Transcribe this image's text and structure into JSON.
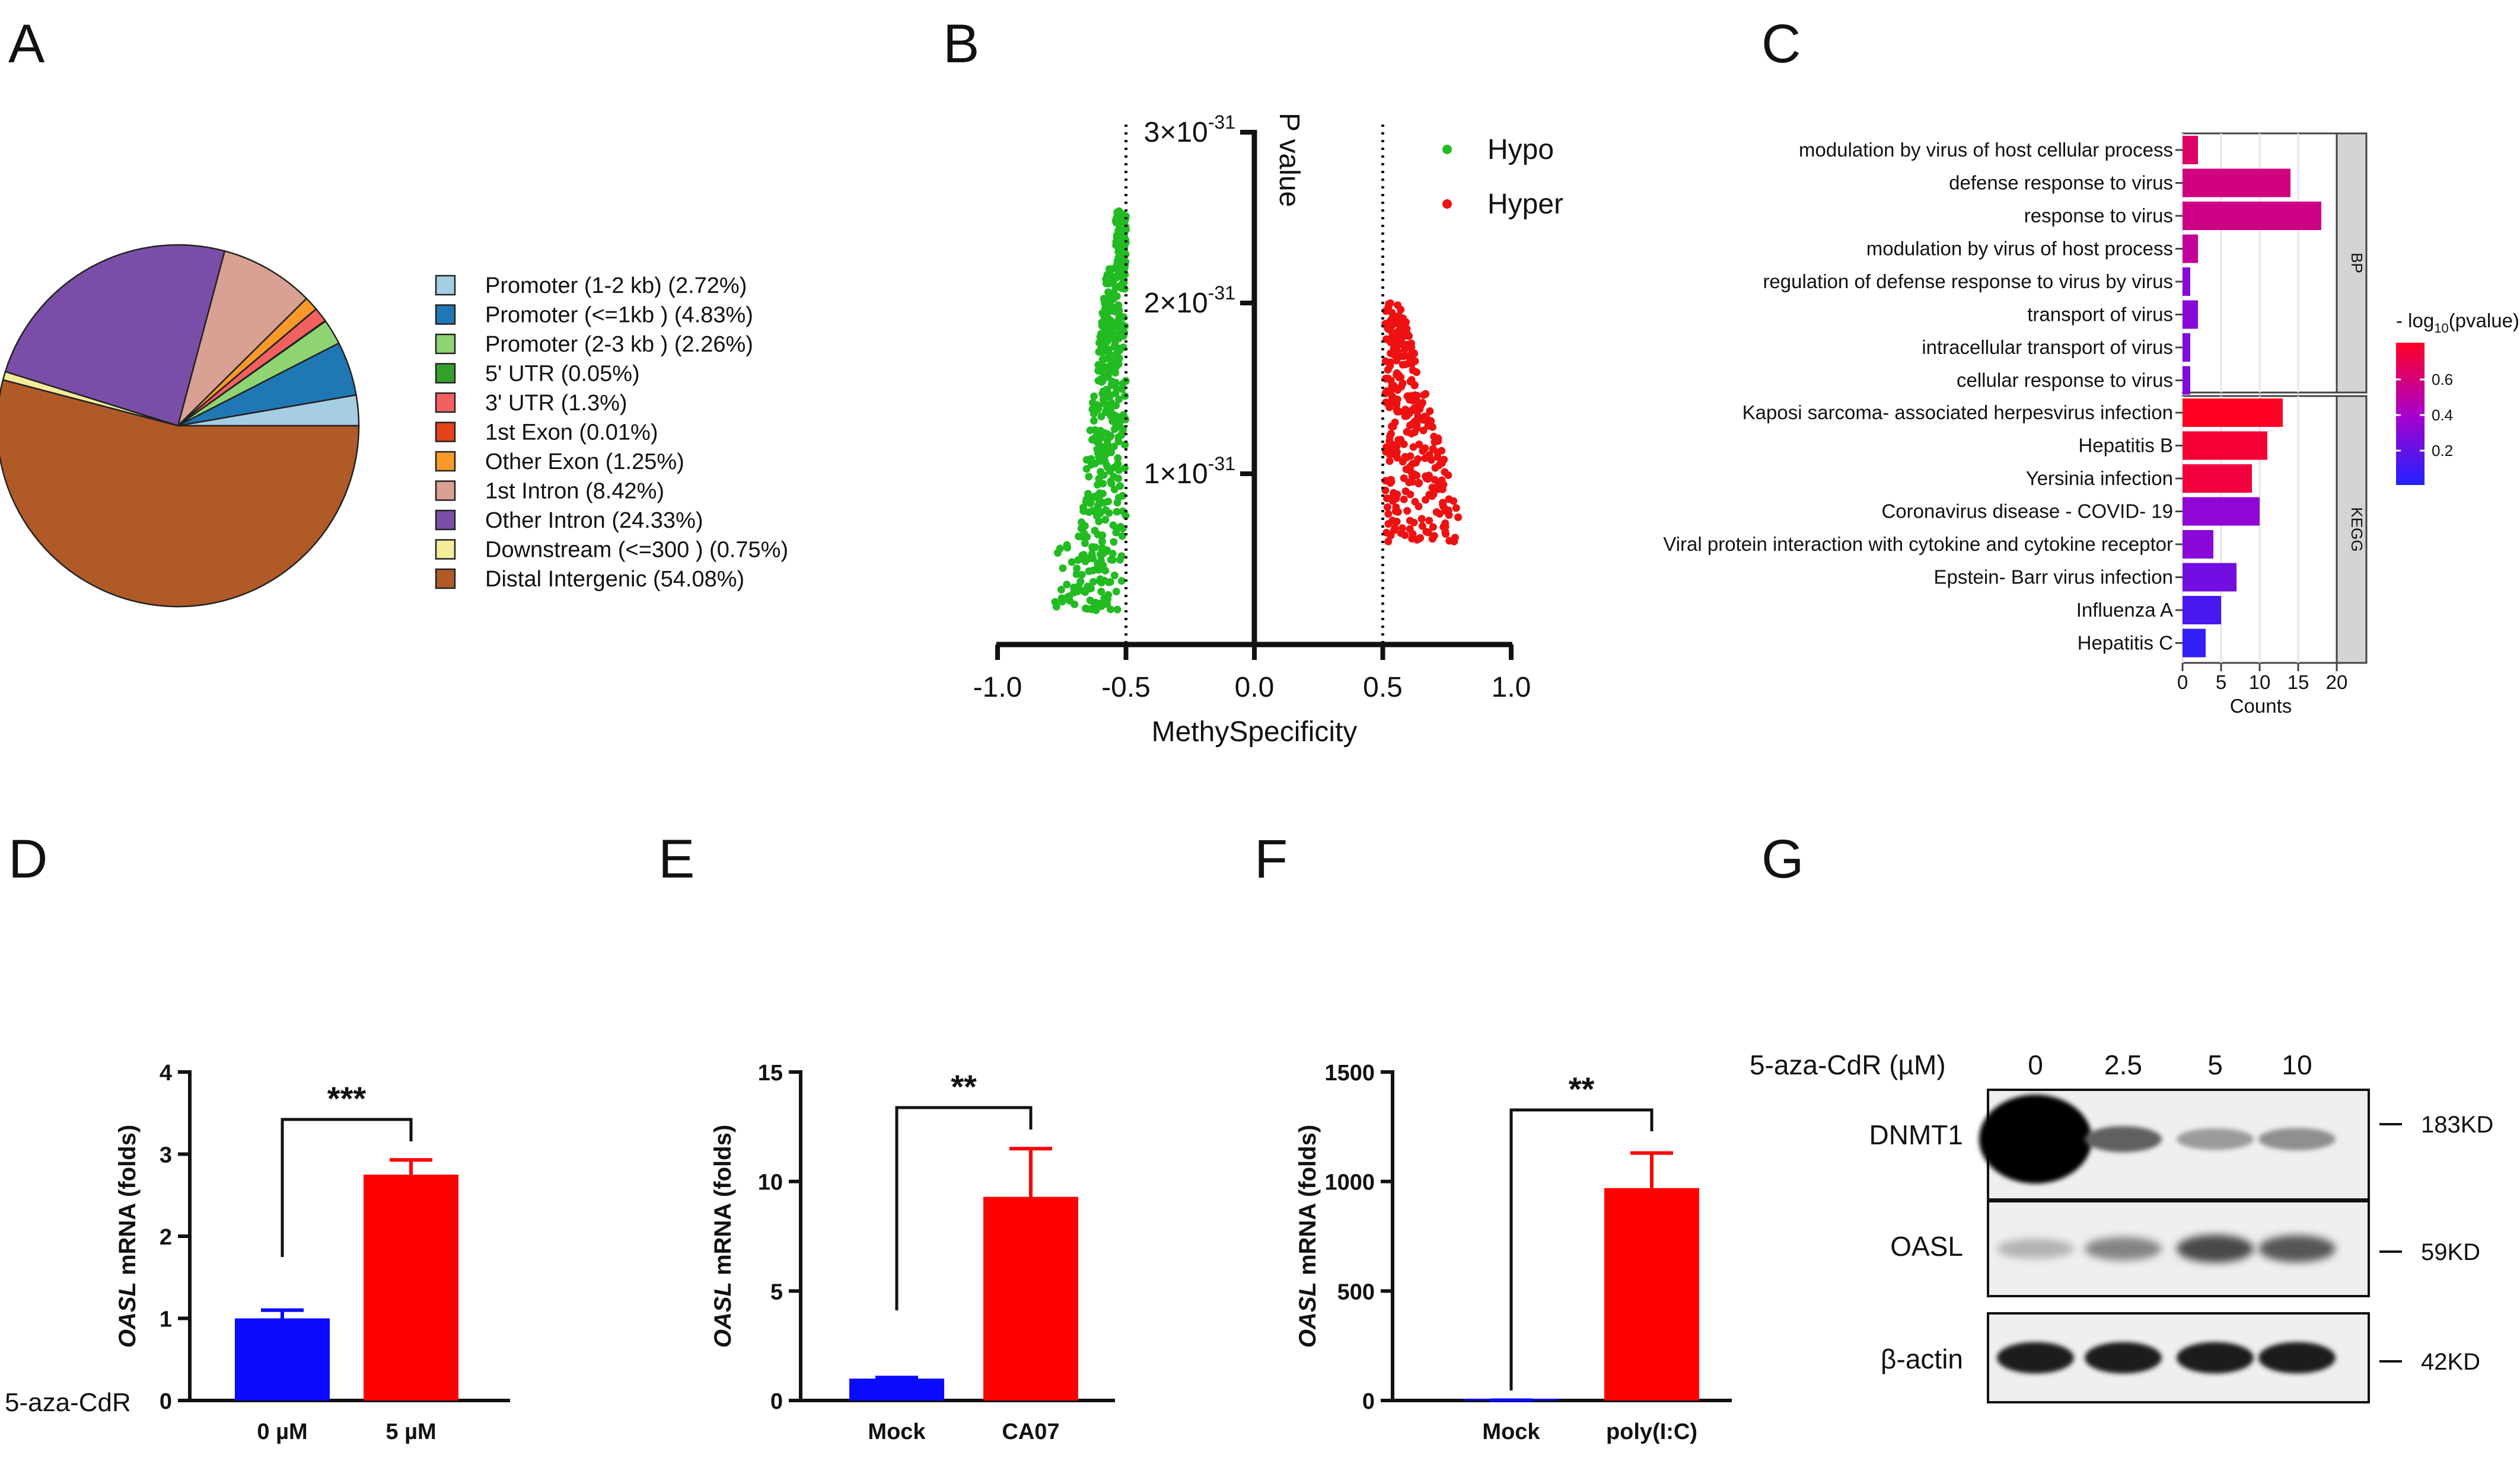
{
  "panels": {
    "A": {
      "label": "A"
    },
    "B": {
      "label": "B"
    },
    "C": {
      "label": "C"
    },
    "D": {
      "label": "D"
    },
    "E": {
      "label": "E"
    },
    "F": {
      "label": "F"
    },
    "G": {
      "label": "G"
    }
  },
  "chart_data": [
    {
      "id": "A",
      "type": "pie",
      "title": "",
      "labels": [
        "Promoter (1-2 kb)  (2.72%)",
        "Promoter (<=1kb ) (4.83%)",
        "Promoter (2-3 kb ) (2.26%)",
        "5' UTR (0.05%)",
        "3' UTR (1.3%)",
        "1st Exon (0.01%)",
        "Other Exon (1.25%)",
        "1st Intron (8.42%)",
        "Other Intron (24.33%)",
        "Downstream (<=300 ) (0.75%)",
        "Distal Intergenic (54.08%)"
      ],
      "values": [
        2.72,
        4.83,
        2.26,
        0.05,
        1.3,
        0.01,
        1.25,
        8.42,
        24.33,
        0.75,
        54.08
      ],
      "colors": [
        "#a6cee3",
        "#1f78b4",
        "#8fd473",
        "#33a02c",
        "#f2605f",
        "#e3431c",
        "#f79a2a",
        "#d9a193",
        "#7a4ea8",
        "#f4ec9a",
        "#b05a28"
      ]
    },
    {
      "id": "B",
      "type": "scatter",
      "xlabel": "MethySpecificity",
      "ylabel": "P value",
      "xlim": [
        -1.0,
        1.0
      ],
      "ylim": [
        0,
        3e-31
      ],
      "xticks": [
        "-1.0",
        "-0.5",
        "0.0",
        "0.5",
        "1.0"
      ],
      "yticks": [
        {
          "v": 1e-31,
          "base": "1×10",
          "exp": "-31"
        },
        {
          "v": 2e-31,
          "base": "2×10",
          "exp": "-31"
        },
        {
          "v": 3e-31,
          "base": "3×10",
          "exp": "-31"
        }
      ],
      "thresholds": [
        -0.5,
        0.5
      ],
      "series": [
        {
          "name": "Hypo",
          "color": "#22bb22",
          "x_range": [
            -0.75,
            -0.5
          ],
          "y_range": [
            2e-32,
            2.55e-31
          ]
        },
        {
          "name": "Hyper",
          "color": "#ee1111",
          "x_range": [
            0.5,
            0.82
          ],
          "y_range": [
            6e-32,
            2e-31
          ]
        }
      ]
    },
    {
      "id": "C",
      "type": "bar",
      "orientation": "horizontal",
      "xlabel": "Counts",
      "xlim": [
        0,
        20
      ],
      "xticks": [
        "0",
        "5",
        "10",
        "15",
        "20"
      ],
      "legend_title_pre": "- log",
      "legend_title_sub": "10",
      "legend_title_post": "(pvalue)",
      "legend_ticks": [
        "0.6",
        "0.4",
        "0.2"
      ],
      "groups": [
        {
          "name": "BP",
          "categories": [
            "modulation by virus of host cellular process",
            "defense response to virus",
            "response to virus",
            "modulation by virus of host process",
            "regulation of defense response to virus by virus",
            "transport of virus",
            "intracellular transport of virus",
            "cellular response to virus"
          ],
          "values": [
            2,
            14,
            18,
            2,
            1,
            2,
            1,
            1
          ],
          "pvalue": [
            0.68,
            0.62,
            0.6,
            0.55,
            0.32,
            0.32,
            0.3,
            0.3
          ]
        },
        {
          "name": "KEGG",
          "categories": [
            "Kaposi sarcoma- associated herpesvirus infection",
            "Hepatitis B",
            "Yersinia infection",
            "Coronavirus disease -  COVID- 19",
            "Viral protein interaction with cytokine and cytokine receptor",
            "Epstein- Barr virus infection",
            "Influenza A",
            "Hepatitis C"
          ],
          "values": [
            13,
            11,
            9,
            10,
            4,
            7,
            5,
            3
          ],
          "pvalue": [
            0.85,
            0.8,
            0.78,
            0.35,
            0.32,
            0.25,
            0.12,
            0.05
          ]
        }
      ]
    },
    {
      "id": "D",
      "type": "bar",
      "ylabel_italic": "OASL",
      "ylabel_rest": " mRNA (folds)",
      "xlabel_left": "5-aza-CdR",
      "categories": [
        "0 µM",
        "5 µM"
      ],
      "values": [
        1.0,
        2.75
      ],
      "errors": [
        0.1,
        0.18
      ],
      "colors": [
        "#0a0aff",
        "#ff0000"
      ],
      "ylim": [
        0,
        4
      ],
      "yticks": [
        "0",
        "1",
        "2",
        "3",
        "4"
      ],
      "significance": "***"
    },
    {
      "id": "E",
      "type": "bar",
      "ylabel_italic": "OASL",
      "ylabel_rest": " mRNA (folds)",
      "categories": [
        "Mock",
        "CA07"
      ],
      "values": [
        1.0,
        9.3
      ],
      "errors": [
        0.05,
        2.2
      ],
      "colors": [
        "#0a0aff",
        "#ff0000"
      ],
      "ylim": [
        0,
        15
      ],
      "yticks": [
        "0",
        "5",
        "10",
        "15"
      ],
      "significance": "**"
    },
    {
      "id": "F",
      "type": "bar",
      "ylabel_italic": "OASL",
      "ylabel_rest": " mRNA (folds)",
      "categories": [
        "Mock",
        "poly(I:C)"
      ],
      "values": [
        1.0,
        970
      ],
      "errors": [
        0.5,
        160
      ],
      "colors": [
        "#0a0aff",
        "#ff0000"
      ],
      "ylim": [
        0,
        1500
      ],
      "yticks": [
        "0",
        "500",
        "1000",
        "1500"
      ],
      "significance": "**"
    }
  ],
  "western": {
    "treatment_label": "5-aza-CdR (µM)",
    "doses": [
      "0",
      "2.5",
      "5",
      "10"
    ],
    "rows": [
      {
        "protein": "DNMT1",
        "size": "183KD",
        "intensity": [
          1.0,
          0.6,
          0.35,
          0.4
        ]
      },
      {
        "protein": "OASL",
        "size": "59KD",
        "intensity": [
          0.25,
          0.45,
          0.7,
          0.65
        ]
      },
      {
        "protein": "β-actin",
        "size": "42KD",
        "intensity": [
          0.9,
          0.9,
          0.9,
          0.9
        ]
      }
    ]
  }
}
